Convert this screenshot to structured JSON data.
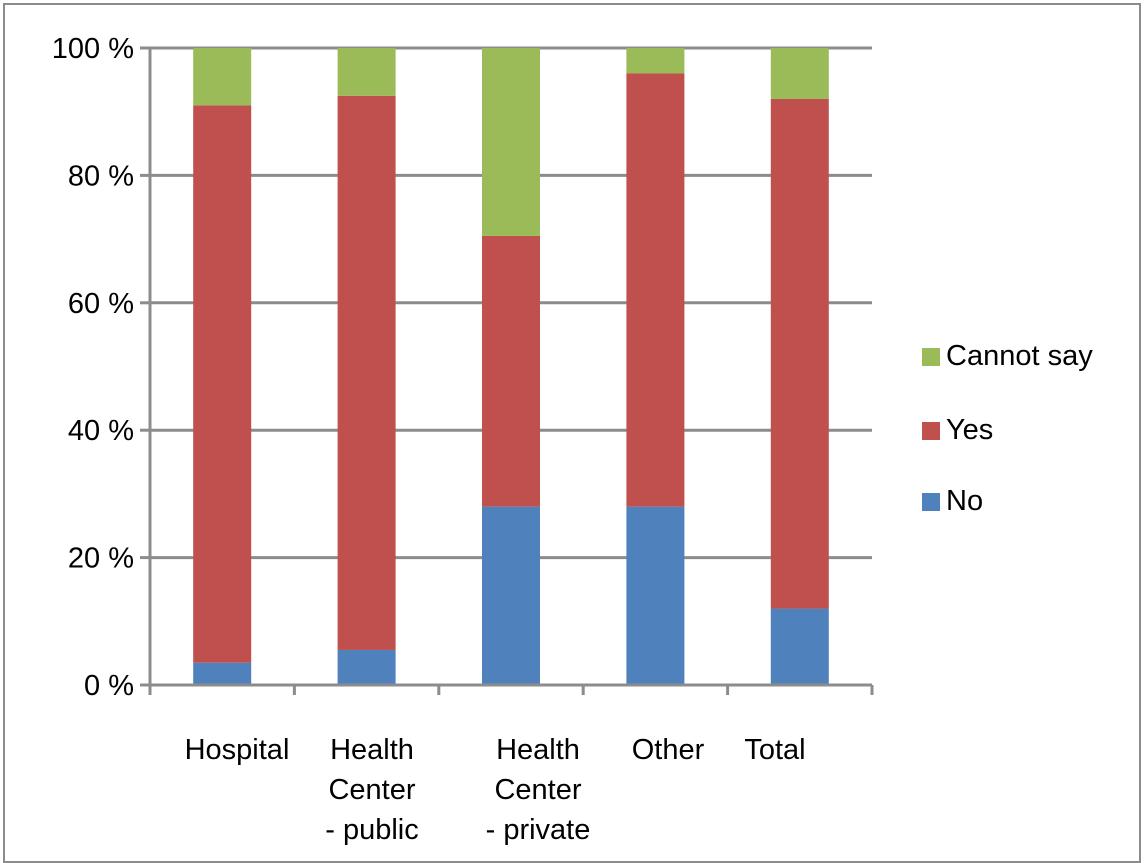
{
  "chart_data": {
    "type": "bar",
    "stacked": true,
    "percent_stacked": true,
    "categories": [
      "Hospital",
      "Health Center - public",
      "Health Center - private",
      "Other",
      "Total"
    ],
    "category_label_lines": [
      [
        "Hospital"
      ],
      [
        "Health",
        "Center",
        "- public"
      ],
      [
        "Health",
        "Center",
        "- private"
      ],
      [
        "Other"
      ],
      [
        "Total"
      ]
    ],
    "series": [
      {
        "name": "No",
        "color": "#4f81bd",
        "values": [
          3.5,
          5.5,
          28,
          28,
          12
        ]
      },
      {
        "name": "Yes",
        "color": "#c0504d",
        "values": [
          87.5,
          87,
          42.5,
          68,
          80
        ]
      },
      {
        "name": "Cannot say",
        "color": "#9bbb59",
        "values": [
          9,
          7.5,
          29.5,
          4,
          8
        ]
      }
    ],
    "ylim": [
      0,
      100
    ],
    "yticks": [
      0,
      20,
      40,
      60,
      80,
      100
    ],
    "ytick_labels": [
      "0 %",
      "20 %",
      "40 %",
      "60 %",
      "80 %",
      "100 %"
    ],
    "grid": true,
    "legend": "right",
    "legend_order": [
      "Cannot say",
      "Yes",
      "No"
    ]
  }
}
